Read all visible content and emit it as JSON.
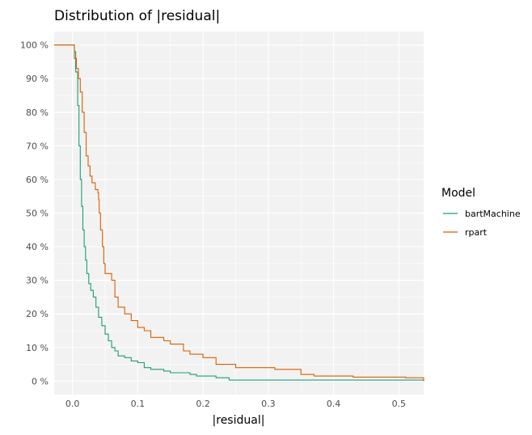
{
  "chart_data": {
    "type": "line",
    "title": "Distribution of |residual|",
    "xlabel": "|residual|",
    "ylabel": "",
    "xlim": [
      -0.028,
      0.538
    ],
    "ylim": [
      -0.04,
      1.04
    ],
    "x_ticks": [
      0.0,
      0.1,
      0.2,
      0.3,
      0.4,
      0.5
    ],
    "x_tick_labels": [
      "0.0",
      "0.1",
      "0.2",
      "0.3",
      "0.4",
      "0.5"
    ],
    "y_ticks": [
      0,
      0.1,
      0.2,
      0.3,
      0.4,
      0.5,
      0.6,
      0.7,
      0.8,
      0.9,
      1.0
    ],
    "y_tick_labels": [
      "0 %",
      "10 %",
      "20 %",
      "30 %",
      "40 %",
      "50 %",
      "60 %",
      "70 %",
      "80 %",
      "90 %",
      "100 %"
    ],
    "grid": true,
    "legend": {
      "title": "Model",
      "position": "right"
    },
    "series": [
      {
        "name": "bartMachine",
        "color": "#1B9E77",
        "x": [
          -0.028,
          0.0,
          0.003,
          0.005,
          0.008,
          0.01,
          0.012,
          0.014,
          0.016,
          0.018,
          0.02,
          0.022,
          0.025,
          0.028,
          0.032,
          0.036,
          0.04,
          0.045,
          0.05,
          0.055,
          0.06,
          0.065,
          0.07,
          0.08,
          0.09,
          0.1,
          0.11,
          0.12,
          0.14,
          0.15,
          0.18,
          0.19,
          0.22,
          0.24,
          0.538
        ],
        "y": [
          1.0,
          1.0,
          0.98,
          0.92,
          0.82,
          0.7,
          0.6,
          0.52,
          0.45,
          0.4,
          0.36,
          0.32,
          0.29,
          0.27,
          0.25,
          0.22,
          0.19,
          0.165,
          0.14,
          0.12,
          0.1,
          0.09,
          0.075,
          0.07,
          0.06,
          0.055,
          0.04,
          0.035,
          0.03,
          0.025,
          0.02,
          0.015,
          0.01,
          0.003,
          0.0
        ]
      },
      {
        "name": "rpart",
        "color": "#D95F02",
        "x": [
          -0.028,
          0.0,
          0.003,
          0.006,
          0.009,
          0.012,
          0.015,
          0.018,
          0.021,
          0.024,
          0.027,
          0.03,
          0.035,
          0.039,
          0.04,
          0.041,
          0.043,
          0.046,
          0.048,
          0.05,
          0.06,
          0.065,
          0.07,
          0.08,
          0.09,
          0.1,
          0.11,
          0.12,
          0.14,
          0.15,
          0.17,
          0.18,
          0.2,
          0.22,
          0.25,
          0.31,
          0.35,
          0.37,
          0.43,
          0.51,
          0.538
        ],
        "y": [
          1.0,
          1.0,
          0.96,
          0.93,
          0.9,
          0.86,
          0.8,
          0.74,
          0.67,
          0.64,
          0.61,
          0.59,
          0.57,
          0.56,
          0.54,
          0.5,
          0.45,
          0.4,
          0.35,
          0.32,
          0.3,
          0.25,
          0.22,
          0.2,
          0.18,
          0.16,
          0.15,
          0.13,
          0.12,
          0.11,
          0.09,
          0.08,
          0.07,
          0.05,
          0.04,
          0.035,
          0.02,
          0.015,
          0.012,
          0.01,
          0.0
        ]
      }
    ]
  }
}
